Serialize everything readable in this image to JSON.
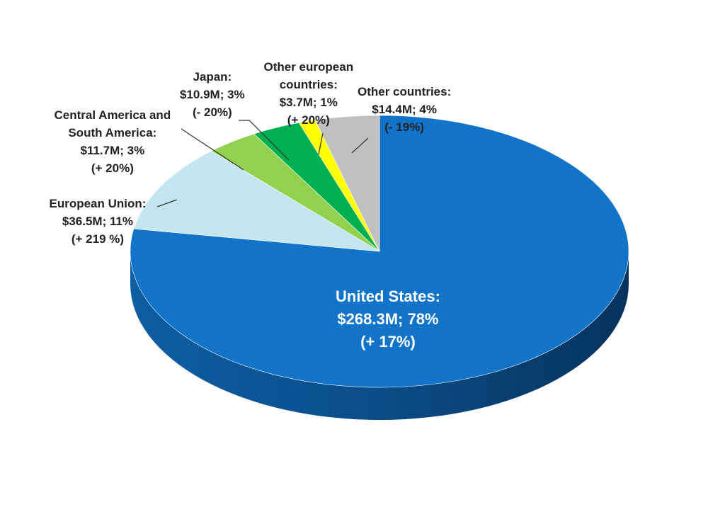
{
  "chart_data": {
    "type": "pie",
    "style": "3d",
    "slices": [
      {
        "name": "United States",
        "value": 268.3,
        "percent": 78,
        "change": "+ 17%",
        "color": "#1174C8",
        "label": [
          "United States:",
          "$268.3M;  78%",
          "(+ 17%)"
        ]
      },
      {
        "name": "European Union",
        "value": 36.5,
        "percent": 11,
        "change": "+ 219 %",
        "color": "#C4E6F0",
        "label": [
          "European Union:",
          "$36.5M; 11%",
          "(+ 219 %)"
        ]
      },
      {
        "name": "Central America and South America",
        "value": 11.7,
        "percent": 3,
        "change": "+ 20%",
        "color": "#92D050",
        "label": [
          "Central America and",
          "South America:",
          "$11.7M; 3%",
          "(+ 20%)"
        ]
      },
      {
        "name": "Japan",
        "value": 10.9,
        "percent": 3,
        "change": "- 20%",
        "color": "#00B050",
        "label": [
          "Japan:",
          "$10.9M; 3%",
          "(- 20%)"
        ]
      },
      {
        "name": "Other european countries",
        "value": 3.7,
        "percent": 1,
        "change": "+ 20%",
        "color": "#FFFF00",
        "label": [
          "Other european",
          "countries:",
          "$3.7M; 1%",
          "(+ 20%)"
        ]
      },
      {
        "name": "Other countries",
        "value": 14.4,
        "percent": 4,
        "change": "- 19%",
        "color": "#C0C0C0",
        "label": [
          "Other countries:",
          "$14.4M; 4%",
          "(- 19%)"
        ]
      }
    ]
  }
}
